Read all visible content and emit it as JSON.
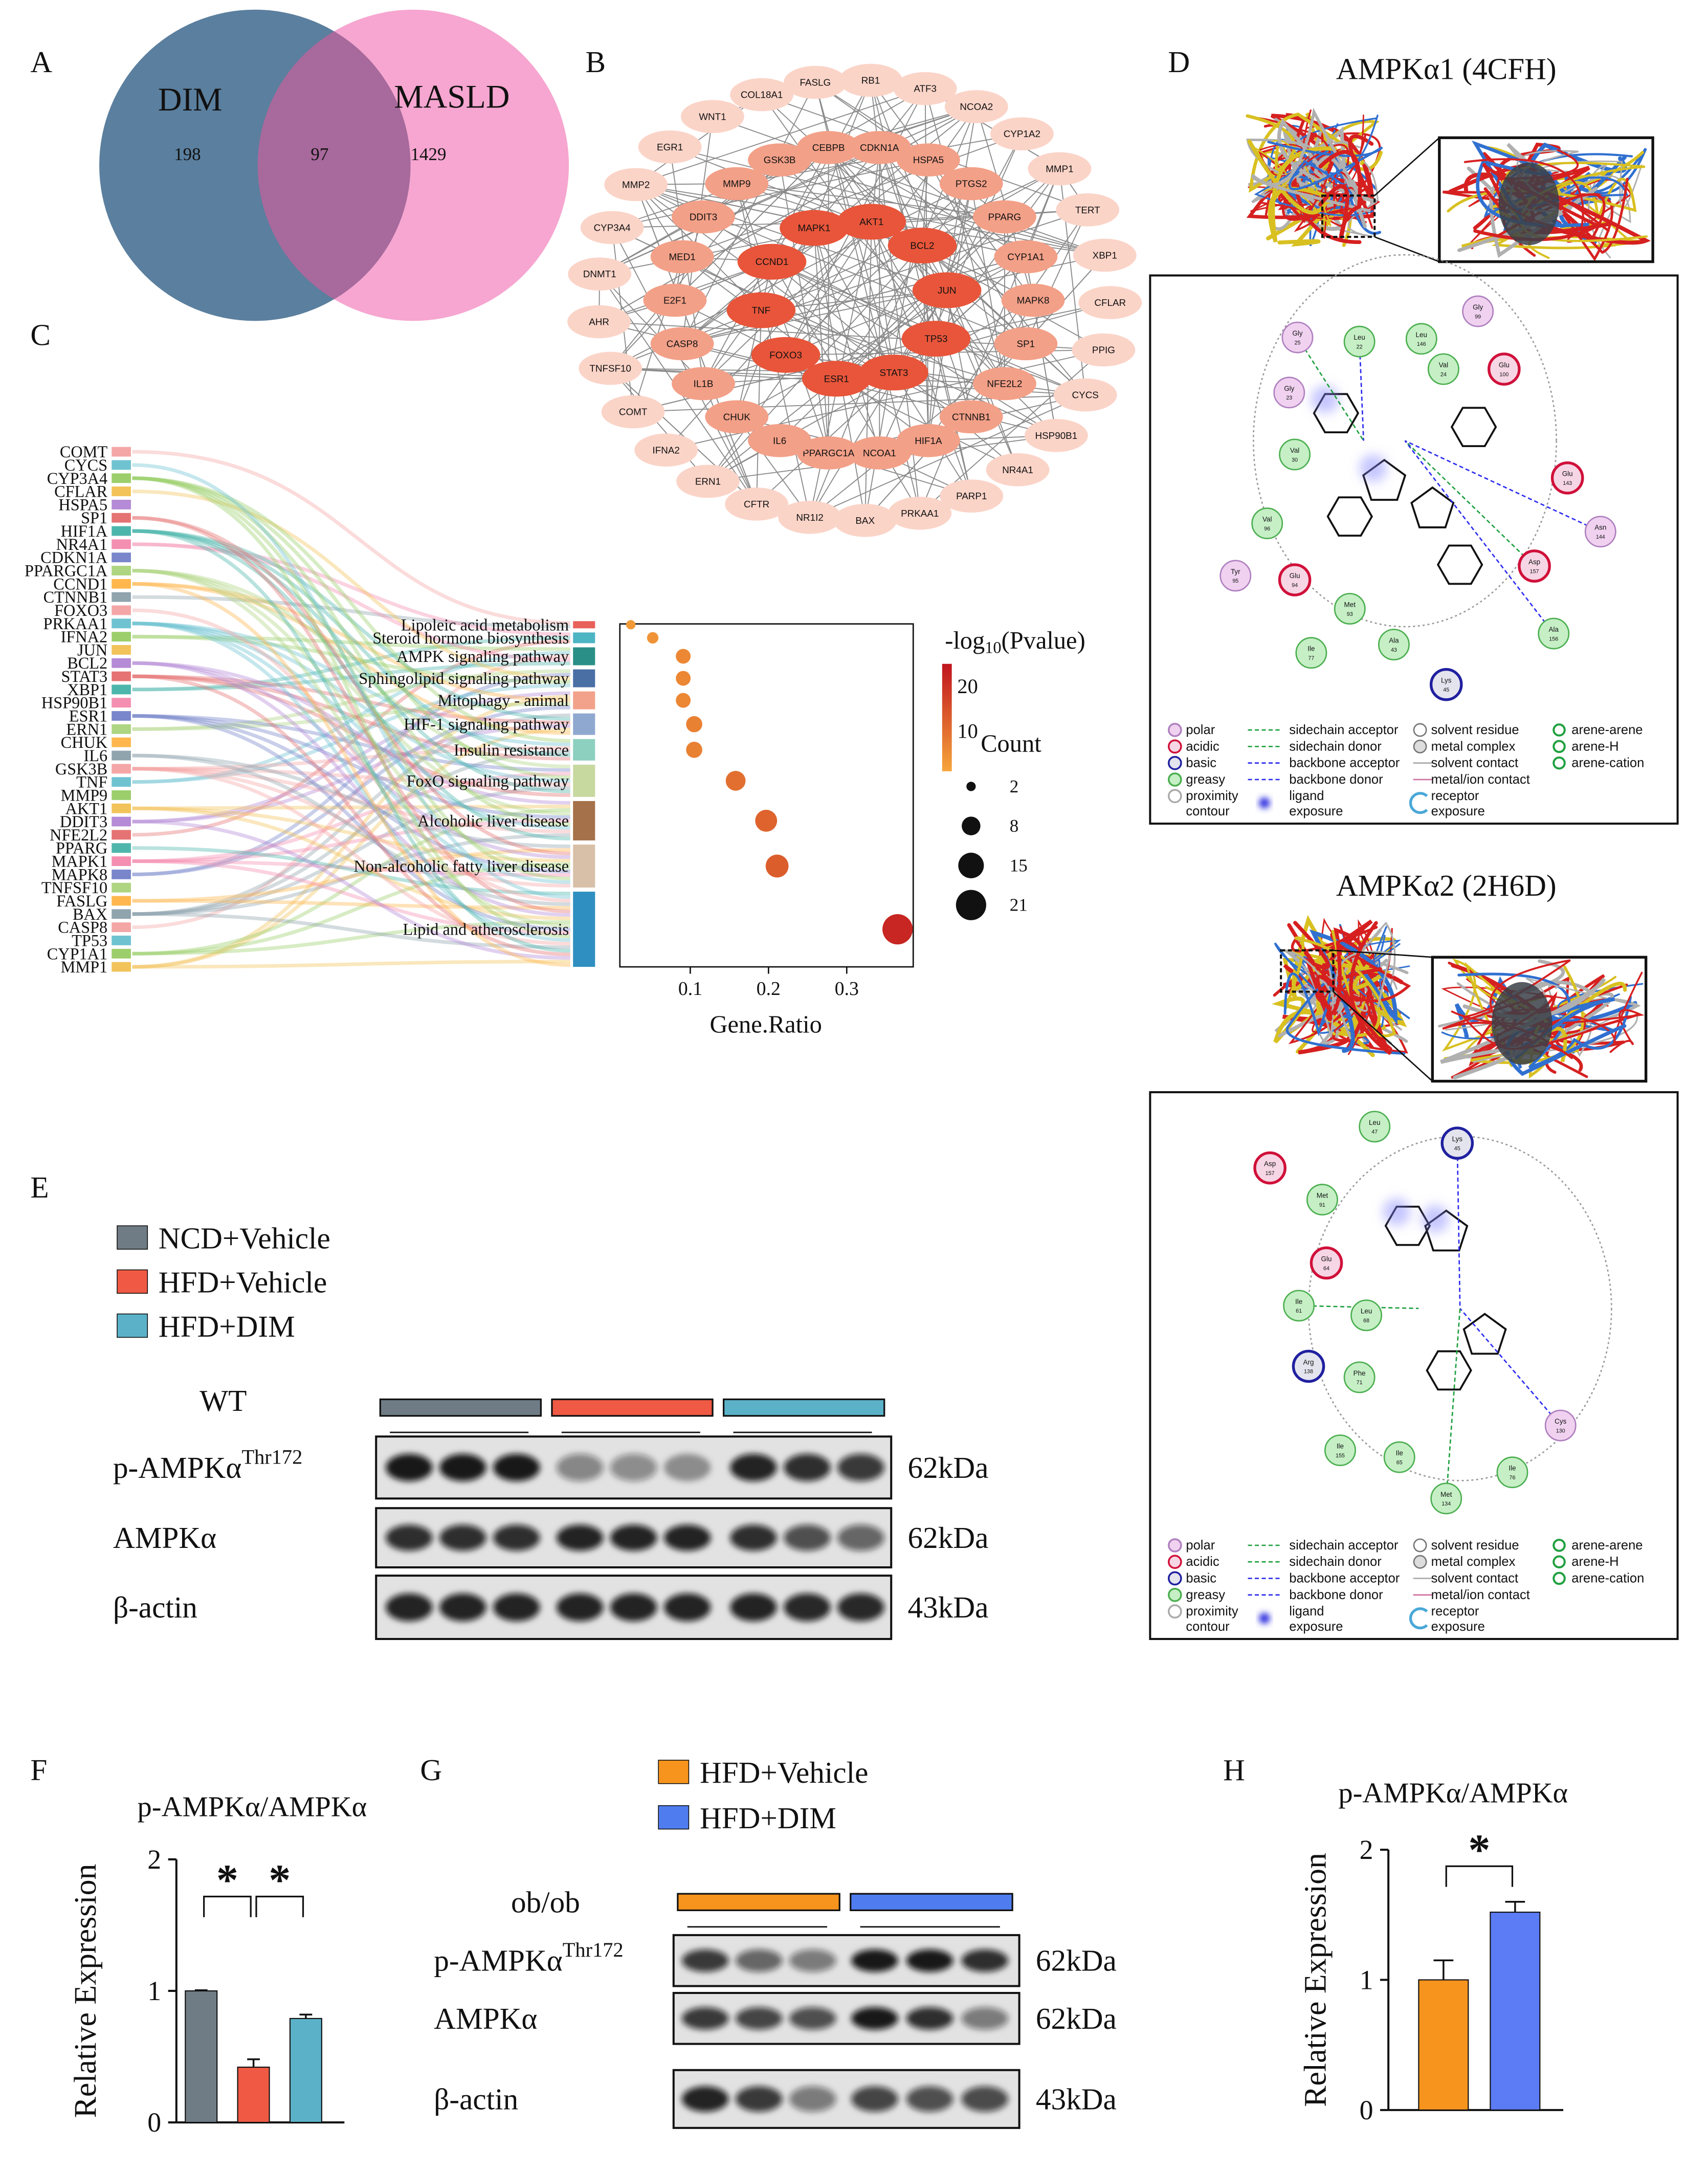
{
  "panel_labels": [
    "A",
    "B",
    "C",
    "D",
    "E",
    "F",
    "G",
    "H"
  ],
  "venn": {
    "sets": [
      "DIM",
      "MASLD"
    ],
    "counts": [
      198,
      97,
      1429
    ],
    "colors": [
      "#5b7f9e",
      "#f6a6d0",
      "#a8699c"
    ]
  },
  "network": {
    "rings": [
      [
        "AKT1",
        "BCL2",
        "JUN",
        "TP53",
        "STAT3",
        "ESR1",
        "FOXO3",
        "TNF",
        "CCND1",
        "MAPK1"
      ],
      [
        "CDKN1A",
        "HSPA5",
        "PTGS2",
        "PPARG",
        "CYP1A1",
        "MAPK8",
        "SP1",
        "NFE2L2",
        "CTNNB1",
        "HIF1A",
        "NCOA1",
        "PPARGC1A",
        "IL6",
        "CHUK",
        "IL1B",
        "CASP8",
        "E2F1",
        "MED1",
        "DDIT3",
        "MMP9",
        "GSK3B",
        "CEBPB"
      ],
      [
        "RB1",
        "ATF3",
        "NCOA2",
        "CYP1A2",
        "MMP1",
        "TERT",
        "XBP1",
        "CFLAR",
        "PPIG",
        "CYCS",
        "HSP90B1",
        "NR4A1",
        "PARP1",
        "PRKAA1",
        "BAX",
        "NR1I2",
        "CFTR",
        "ERN1",
        "IFNA2",
        "COMT",
        "TNFSF10",
        "AHR",
        "DNMT1",
        "CYP3A4",
        "MMP2",
        "EGR1",
        "WNT1",
        "COL18A1",
        "FASLG"
      ]
    ],
    "ring_colors": [
      "#e8553a",
      "#f3a088",
      "#fbd4c8"
    ]
  },
  "sankey": {
    "genes": [
      "COMT",
      "CYCS",
      "CYP3A4",
      "CFLAR",
      "HSPA5",
      "SP1",
      "HIF1A",
      "NR4A1",
      "CDKN1A",
      "PPARGC1A",
      "CCND1",
      "CTNNB1",
      "FOXO3",
      "PRKAA1",
      "IFNA2",
      "JUN",
      "BCL2",
      "STAT3",
      "XBP1",
      "HSP90B1",
      "ESR1",
      "ERN1",
      "CHUK",
      "IL6",
      "GSK3B",
      "TNF",
      "MMP9",
      "AKT1",
      "DDIT3",
      "NFE2L2",
      "PPARG",
      "MAPK1",
      "MAPK8",
      "TNFSF10",
      "FASLG",
      "BAX",
      "CASP8",
      "TP53",
      "CYP1A1",
      "MMP1"
    ]
  },
  "docking": {
    "titles": [
      "AMPKα1 (4CFH)",
      "AMPKα2 (2H6D)"
    ],
    "complexes": [
      [
        {
          "name": "Gly",
          "num": "99",
          "type": "polar"
        },
        {
          "name": "Leu",
          "num": "22",
          "type": "greasy"
        },
        {
          "name": "Leu",
          "num": "146",
          "type": "greasy"
        },
        {
          "name": "Val",
          "num": "24",
          "type": "greasy"
        },
        {
          "name": "Glu",
          "num": "100",
          "type": "acidic"
        },
        {
          "name": "Gly",
          "num": "25",
          "type": "polar"
        },
        {
          "name": "Gly",
          "num": "23",
          "type": "polar"
        },
        {
          "name": "Val",
          "num": "30",
          "type": "greasy"
        },
        {
          "name": "Glu",
          "num": "143",
          "type": "acidic"
        },
        {
          "name": "Asn",
          "num": "144",
          "type": "polar"
        },
        {
          "name": "Val",
          "num": "96",
          "type": "greasy"
        },
        {
          "name": "Tyr",
          "num": "95",
          "type": "polar"
        },
        {
          "name": "Glu",
          "num": "94",
          "type": "acidic"
        },
        {
          "name": "Asp",
          "num": "157",
          "type": "acidic"
        },
        {
          "name": "Met",
          "num": "93",
          "type": "greasy"
        },
        {
          "name": "Ile",
          "num": "77",
          "type": "greasy"
        },
        {
          "name": "Ala",
          "num": "43",
          "type": "greasy"
        },
        {
          "name": "Ala",
          "num": "156",
          "type": "greasy"
        },
        {
          "name": "Lys",
          "num": "45",
          "type": "basic"
        }
      ],
      [
        {
          "name": "Leu",
          "num": "47",
          "type": "greasy"
        },
        {
          "name": "Lys",
          "num": "45",
          "type": "basic"
        },
        {
          "name": "Asp",
          "num": "157",
          "type": "acidic"
        },
        {
          "name": "Met",
          "num": "91",
          "type": "greasy"
        },
        {
          "name": "Glu",
          "num": "64",
          "type": "acidic"
        },
        {
          "name": "Ile",
          "num": "61",
          "type": "greasy"
        },
        {
          "name": "Leu",
          "num": "68",
          "type": "greasy"
        },
        {
          "name": "Arg",
          "num": "138",
          "type": "basic"
        },
        {
          "name": "Phe",
          "num": "71",
          "type": "greasy"
        },
        {
          "name": "Cys",
          "num": "130",
          "type": "polar"
        },
        {
          "name": "Ile",
          "num": "155",
          "type": "greasy"
        },
        {
          "name": "Ile",
          "num": "65",
          "type": "greasy"
        },
        {
          "name": "Ile",
          "num": "76",
          "type": "greasy"
        },
        {
          "name": "Met",
          "num": "134",
          "type": "greasy"
        }
      ]
    ],
    "legend": [
      [
        [
          "polar"
        ],
        [
          "acidic"
        ],
        [
          "basic"
        ],
        [
          "greasy"
        ],
        [
          "proximity",
          "contour"
        ]
      ],
      [
        [
          "sidechain acceptor"
        ],
        [
          "sidechain donor"
        ],
        [
          "backbone acceptor"
        ],
        [
          "backbone donor"
        ],
        [
          "ligand",
          "exposure"
        ]
      ],
      [
        [
          "solvent residue"
        ],
        [
          "metal complex"
        ],
        [
          "solvent contact"
        ],
        [
          "metal/ion contact"
        ],
        [
          "receptor",
          "exposure"
        ]
      ],
      [
        [
          "arene-arene"
        ],
        [
          "arene-H"
        ],
        [
          "arene-cation"
        ]
      ]
    ]
  },
  "blot_e": {
    "groups": [
      "NCD+Vehicle",
      "HFD+Vehicle",
      "HFD+DIM"
    ],
    "colors": [
      "#6f7c85",
      "#f05a44",
      "#5bb2c8"
    ],
    "model": "WT",
    "rows": [
      {
        "protein": "p-AMPKα",
        "site": "Thr172",
        "size": "62kDa"
      },
      {
        "protein": "AMPKα",
        "size": "62kDa"
      },
      {
        "protein": "β-actin",
        "size": "43kDa"
      }
    ]
  },
  "blot_g": {
    "groups": [
      "HFD+Vehicle",
      "HFD+DIM"
    ],
    "colors": [
      "#f7941d",
      "#4f7df0"
    ],
    "model": "ob/ob",
    "rows": [
      {
        "protein": "p-AMPKα",
        "site": "Thr172",
        "size": "62kDa"
      },
      {
        "protein": "AMPKα",
        "size": "62kDa"
      },
      {
        "protein": "β-actin",
        "size": "43kDa"
      }
    ]
  },
  "chart_data": [
    {
      "type": "scatter",
      "categories": [
        "Lipoleic acid metabolism",
        "Steroid hormone biosynthesis",
        "AMPK signaling pathway",
        "Sphingolipid signaling pathway",
        "Mitophagy - animal",
        "HIF-1 signaling pathway",
        "Insulin resistance",
        "FoxO signaling pathway",
        "Alcoholic liver disease",
        "Non-alcoholic fatty liver disease",
        "Lipid and atherosclerosis"
      ],
      "x": [
        0.024,
        0.052,
        0.091,
        0.091,
        0.091,
        0.105,
        0.105,
        0.158,
        0.197,
        0.211,
        0.365
      ],
      "counts": [
        2,
        3,
        5,
        5,
        5,
        6,
        6,
        9,
        11,
        12,
        21
      ],
      "color_values": [
        3,
        4,
        6,
        6,
        6,
        7,
        7,
        10,
        12,
        13,
        22
      ],
      "xlabel": "Gene.Ratio",
      "xlim": [
        0.01,
        0.385
      ],
      "xticks": [
        0.1,
        0.2,
        0.3
      ],
      "color_title": [
        "-log",
        "10",
        "(Pvalue)"
      ],
      "clim": [
        1,
        25
      ],
      "cticks": [
        10,
        20
      ],
      "color_range": [
        "#f7a53a",
        "#c0141e"
      ],
      "size_title": "Count",
      "size_legend": [
        2,
        8,
        15,
        21
      ]
    },
    {
      "type": "bar",
      "title": "p-AMPKα/AMPKα",
      "ylabel": "Relative Expression",
      "categories": [
        null,
        null,
        null
      ],
      "values": [
        1.0,
        0.42,
        0.79
      ],
      "errors": [
        0.005,
        0.06,
        0.03
      ],
      "colors": [
        "#6f7c85",
        "#f05a44",
        "#5bb2c8"
      ],
      "ylim": [
        0,
        2
      ],
      "yticks": [
        0,
        1,
        2
      ],
      "significance": [
        {
          "label": "*",
          "pair": [
            0,
            1
          ]
        },
        {
          "label": "*",
          "pair": [
            1,
            2
          ]
        }
      ]
    },
    {
      "type": "bar",
      "title": "p-AMPKα/AMPKα",
      "ylabel": "Relative Expression",
      "categories": [
        null,
        null
      ],
      "values": [
        1.0,
        1.52
      ],
      "errors": [
        0.15,
        0.08
      ],
      "colors": [
        "#f7941d",
        "#5b7cf5"
      ],
      "ylim": [
        0,
        2
      ],
      "yticks": [
        0,
        1,
        2
      ],
      "significance": [
        {
          "label": "*",
          "pair": [
            0,
            1
          ]
        }
      ]
    }
  ]
}
